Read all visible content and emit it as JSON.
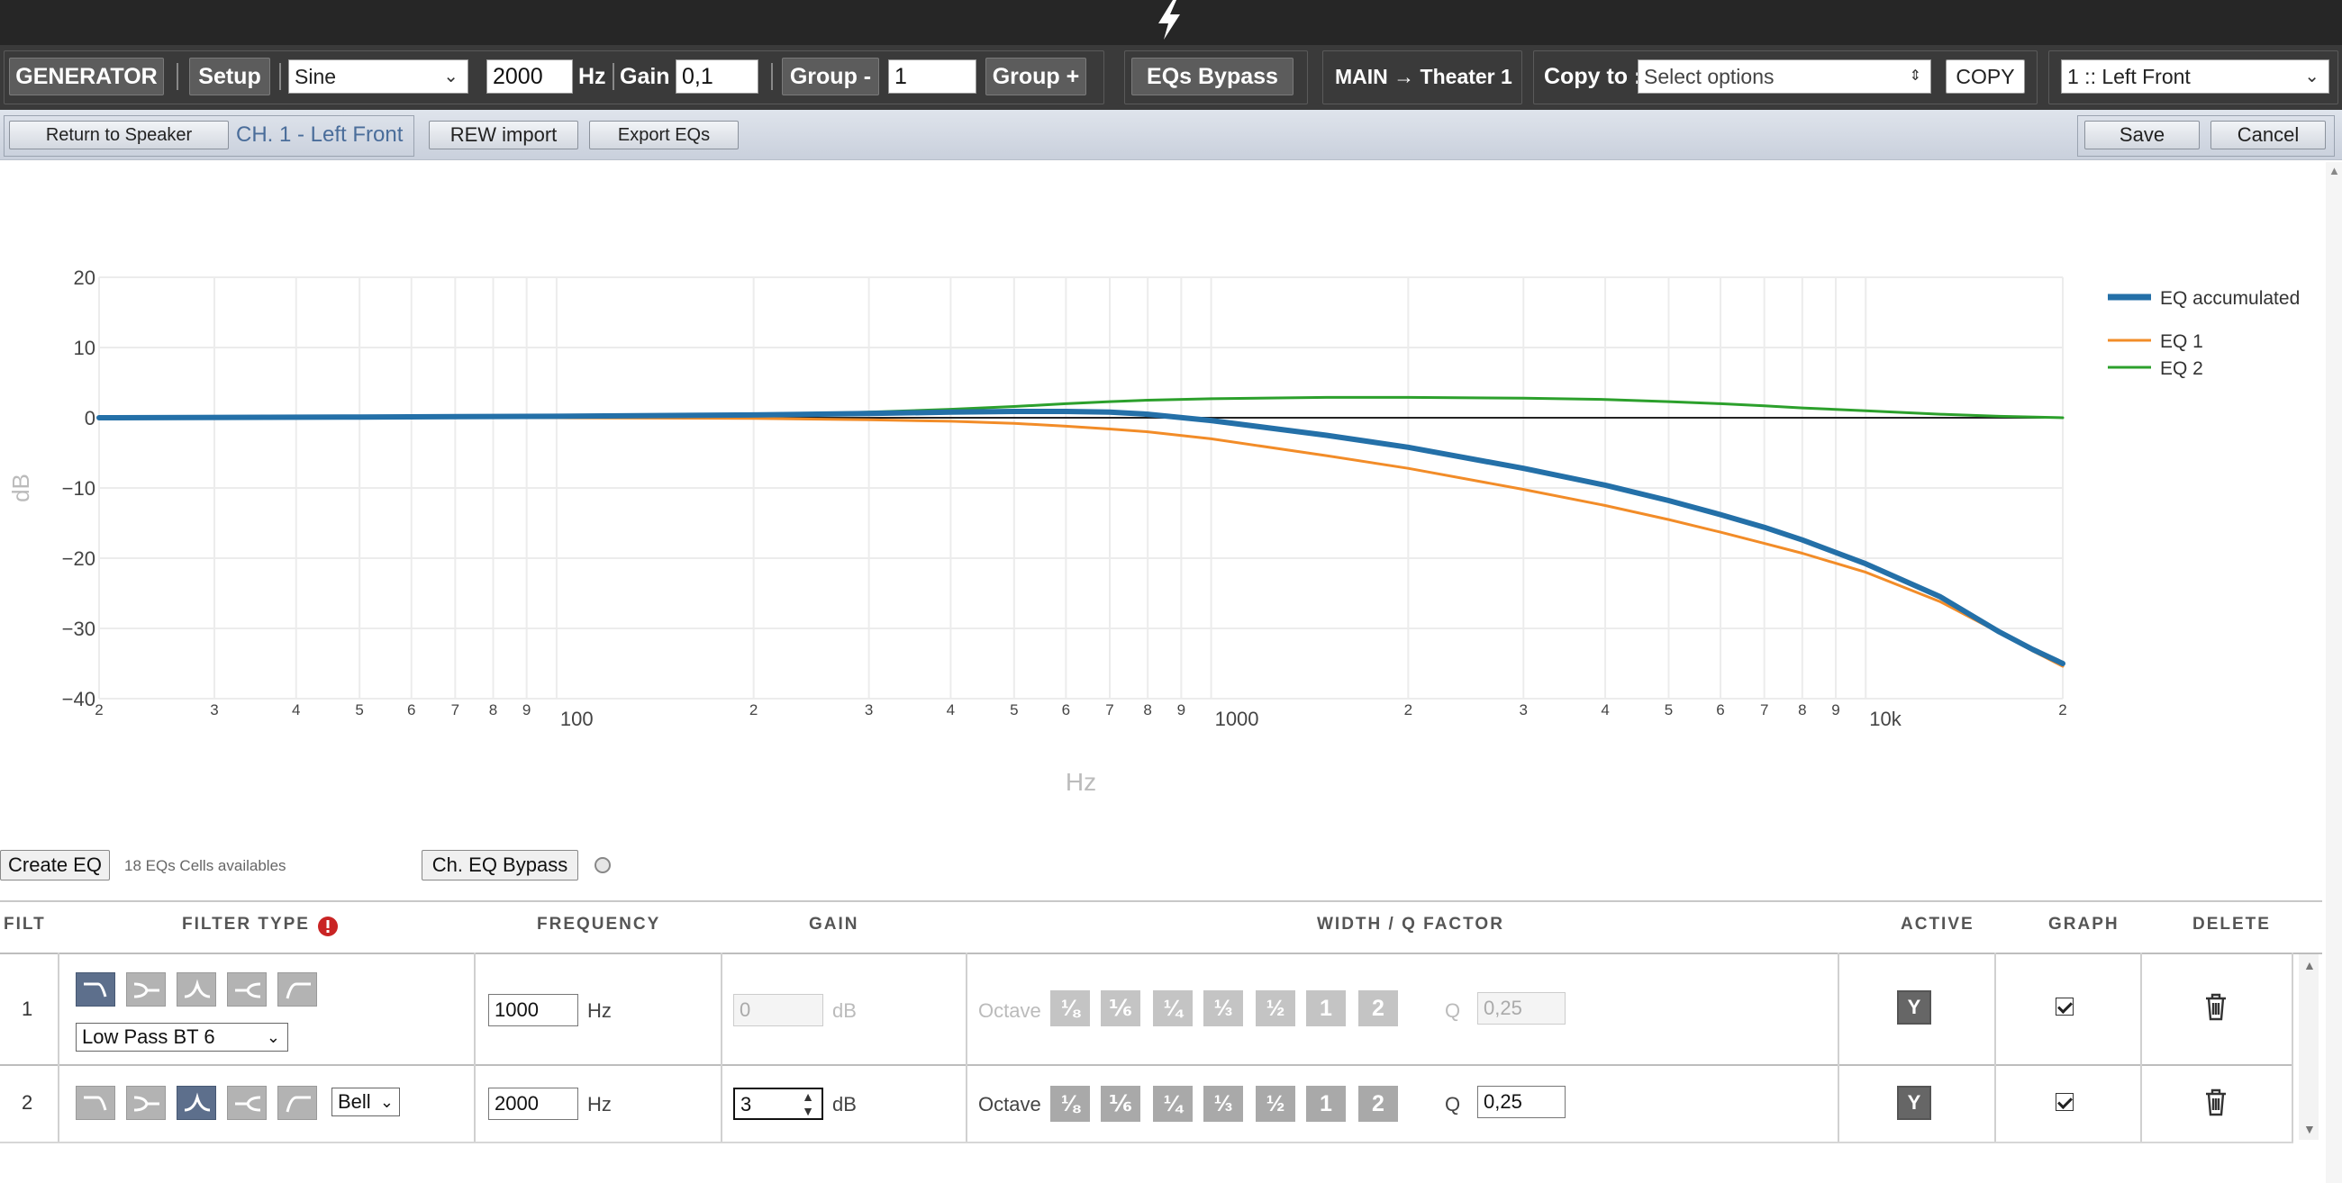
{
  "toolbar": {
    "generator_label": "GENERATOR",
    "setup_label": "Setup",
    "waveform": "Sine",
    "frequency_value": "2000",
    "frequency_unit": "Hz",
    "gain_label": "Gain",
    "gain_value": "0,1",
    "group_minus_label": "Group -",
    "group_value": "1",
    "group_plus_label": "Group +",
    "eqs_bypass_label": "EQs Bypass",
    "route_label": "MAIN → Theater 1",
    "copy_to_label": "Copy to :",
    "copy_to_placeholder": "Select options",
    "copy_label": "COPY",
    "channel_select": "1 :: Left Front"
  },
  "subbar": {
    "return_label": "Return to Speaker",
    "channel_title": "CH. 1 - Left Front",
    "rew_import_label": "REW import",
    "export_label": "Export EQs",
    "save_label": "Save",
    "cancel_label": "Cancel"
  },
  "chart_data": {
    "type": "line",
    "title": "",
    "xlabel": "Hz",
    "ylabel": "dB",
    "x_scale": "log",
    "xlim": [
      20,
      20000
    ],
    "ylim": [
      -40,
      20
    ],
    "y_ticks": [
      20,
      10,
      0,
      -10,
      -20,
      -30,
      -40
    ],
    "y_tick_labels": [
      "20",
      "10",
      "0",
      "−10",
      "−20",
      "−30",
      "−40"
    ],
    "x_tick_values": [
      20,
      30,
      40,
      50,
      60,
      70,
      80,
      90,
      100,
      200,
      300,
      400,
      500,
      600,
      700,
      800,
      900,
      1000,
      2000,
      3000,
      4000,
      5000,
      6000,
      7000,
      8000,
      9000,
      10000,
      20000
    ],
    "x_tick_labels": [
      "2",
      "3",
      "4",
      "5",
      "6",
      "7",
      "8",
      "9",
      "100",
      "2",
      "3",
      "4",
      "5",
      "6",
      "7",
      "8",
      "9",
      "1000",
      "2",
      "3",
      "4",
      "5",
      "6",
      "7",
      "8",
      "9",
      "10k",
      "2"
    ],
    "grid": true,
    "legend": "top-right",
    "series": [
      {
        "name": "EQ accumulated",
        "color": "#2470a8",
        "x": [
          20,
          50,
          100,
          200,
          300,
          400,
          500,
          600,
          700,
          800,
          1000,
          1500,
          2000,
          3000,
          4000,
          5000,
          6000,
          7000,
          8000,
          10000,
          13000,
          16000,
          18000,
          20000
        ],
        "y": [
          0,
          0.1,
          0.2,
          0.4,
          0.6,
          0.8,
          0.9,
          0.9,
          0.8,
          0.5,
          -0.4,
          -2.5,
          -4.2,
          -7.2,
          -9.6,
          -11.8,
          -13.8,
          -15.6,
          -17.4,
          -20.8,
          -25.5,
          -30.5,
          -33,
          -35
        ]
      },
      {
        "name": "EQ 1",
        "color": "#f28c28",
        "x": [
          20,
          50,
          100,
          200,
          300,
          400,
          500,
          600,
          700,
          800,
          1000,
          1500,
          2000,
          3000,
          4000,
          5000,
          6000,
          7000,
          8000,
          10000,
          13000,
          16000,
          18000,
          20000
        ],
        "y": [
          0,
          0,
          0,
          -0.1,
          -0.3,
          -0.5,
          -0.8,
          -1.2,
          -1.6,
          -2,
          -3,
          -5.4,
          -7.2,
          -10.2,
          -12.5,
          -14.5,
          -16.3,
          -17.9,
          -19.3,
          -22,
          -26.2,
          -30.6,
          -33.2,
          -35.4
        ]
      },
      {
        "name": "EQ 2",
        "color": "#2ca02c",
        "x": [
          20,
          50,
          100,
          200,
          300,
          400,
          500,
          600,
          700,
          800,
          1000,
          1500,
          2000,
          3000,
          4000,
          5000,
          6000,
          7000,
          8000,
          10000,
          13000,
          16000,
          20000
        ],
        "y": [
          0,
          0.1,
          0.2,
          0.4,
          0.8,
          1.2,
          1.6,
          2,
          2.3,
          2.5,
          2.7,
          2.9,
          2.9,
          2.8,
          2.6,
          2.3,
          2,
          1.7,
          1.4,
          1,
          0.5,
          0.2,
          0
        ]
      }
    ]
  },
  "eq_controls": {
    "create_label": "Create EQ",
    "cells_available": "18 EQs Cells availables",
    "ch_bypass_label": "Ch. EQ Bypass"
  },
  "table": {
    "headers": [
      "FILT",
      "FILTER TYPE",
      "FREQUENCY",
      "GAIN",
      "WIDTH / Q FACTOR",
      "ACTIVE",
      "GRAPH",
      "DELETE"
    ],
    "octave_label": "Octave",
    "octave_options": [
      "⅛",
      "⅙",
      "¼",
      "⅓",
      "½",
      "1",
      "2"
    ],
    "q_label": "Q",
    "y_label": "Y",
    "rows": [
      {
        "index": "1",
        "filter_select": "Low Pass BT 6",
        "frequency": "1000",
        "freq_unit": "Hz",
        "gain": "0",
        "gain_unit": "dB",
        "q": "0,25"
      },
      {
        "index": "2",
        "filter_select": "Bell",
        "frequency": "2000",
        "freq_unit": "Hz",
        "gain": "3",
        "gain_unit": "dB",
        "q": "0,25"
      }
    ]
  }
}
